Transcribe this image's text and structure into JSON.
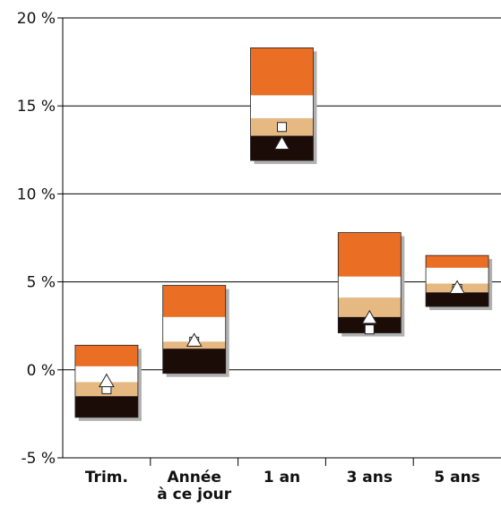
{
  "chart_data": {
    "type": "bar",
    "subtype": "floating-quartile-range",
    "categories": [
      "Trim.",
      "Année\nà ce jour",
      "1 an",
      "3 ans",
      "5 ans"
    ],
    "ylim": [
      -5,
      20
    ],
    "yticks": [
      -5,
      0,
      5,
      10,
      15,
      20
    ],
    "ytick_labels": [
      "-5 %",
      "0 %",
      "5 %",
      "10 %",
      "15 %",
      "20 %"
    ],
    "grid": true,
    "colors": {
      "q1": "#eb6e25",
      "q2": "#ffffff",
      "q3": "#e6b882",
      "q4": "#1c0c08",
      "shadow": "#b0b0b0",
      "grid": "#000000"
    },
    "series": [
      {
        "name": "",
        "values": [
          1.4,
          4.8,
          18.3,
          7.8,
          6.5
        ]
      },
      {
        "name": "",
        "values": [
          0.2,
          3.0,
          15.6,
          5.3,
          5.8
        ]
      },
      {
        "name": "",
        "values": [
          -0.7,
          1.6,
          14.3,
          4.1,
          4.9
        ]
      },
      {
        "name": "",
        "values": [
          -1.5,
          1.2,
          13.3,
          3.0,
          4.4
        ]
      },
      {
        "name": "",
        "values": [
          -2.7,
          -0.2,
          11.9,
          2.1,
          3.6
        ]
      }
    ],
    "markers": {
      "square": [
        -1.1,
        1.6,
        13.8,
        2.3,
        4.6
      ],
      "triangle": [
        -0.6,
        1.7,
        12.9,
        3.0,
        4.7
      ]
    }
  }
}
